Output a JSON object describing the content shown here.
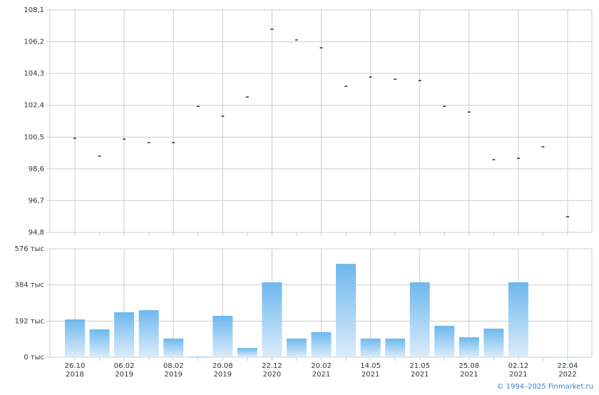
{
  "chart_data": [
    {
      "type": "scatter",
      "color": "#000000",
      "values": [
        100.43,
        99.36,
        100.38,
        100.17,
        100.17,
        102.34,
        101.75,
        102.9,
        106.95,
        106.31,
        105.84,
        103.54,
        104.09,
        103.96,
        103.88,
        102.34,
        102.0,
        99.15,
        99.23,
        99.92,
        95.74
      ],
      "ylim": [
        94.8,
        108.1
      ],
      "yticks": [
        {
          "value": 94.8,
          "label": "94,8"
        },
        {
          "value": 96.7,
          "label": "96,7"
        },
        {
          "value": 98.6,
          "label": "98,6"
        },
        {
          "value": 100.5,
          "label": "100,5"
        },
        {
          "value": 102.4,
          "label": "102,4"
        },
        {
          "value": 104.3,
          "label": "104,3"
        },
        {
          "value": 106.2,
          "label": "106,2"
        },
        {
          "value": 108.1,
          "label": "108,1"
        }
      ],
      "grid": true
    },
    {
      "type": "bar",
      "color": "#6db8ee",
      "categories": [
        [
          "26.10",
          "2018"
        ],
        null,
        [
          "06.02",
          "2019"
        ],
        null,
        [
          "08.02",
          "2019"
        ],
        null,
        [
          "20.08",
          "2019"
        ],
        null,
        [
          "22.12",
          "2020"
        ],
        null,
        [
          "20.02",
          "2021"
        ],
        null,
        [
          "14.05",
          "2021"
        ],
        null,
        [
          "21.05",
          "2021"
        ],
        null,
        [
          "25.08",
          "2021"
        ],
        null,
        [
          "02.12",
          "2021"
        ],
        null,
        [
          "22.04",
          "2022"
        ]
      ],
      "values": [
        201000,
        148000,
        239000,
        250000,
        99000,
        4000,
        220000,
        49000,
        398000,
        99000,
        133000,
        496000,
        99000,
        99000,
        398000,
        167000,
        106000,
        152000,
        398000,
        2000,
        2000
      ],
      "ylim": [
        0,
        576000
      ],
      "yticks": [
        {
          "value": 0,
          "label": "0 тыс"
        },
        {
          "value": 192000,
          "label": "192 тыс"
        },
        {
          "value": 384000,
          "label": "384 тыс"
        },
        {
          "value": 576000,
          "label": "576 тыс"
        }
      ],
      "grid": true
    }
  ],
  "footer": "© 1994–2025 Finmarket.ru"
}
